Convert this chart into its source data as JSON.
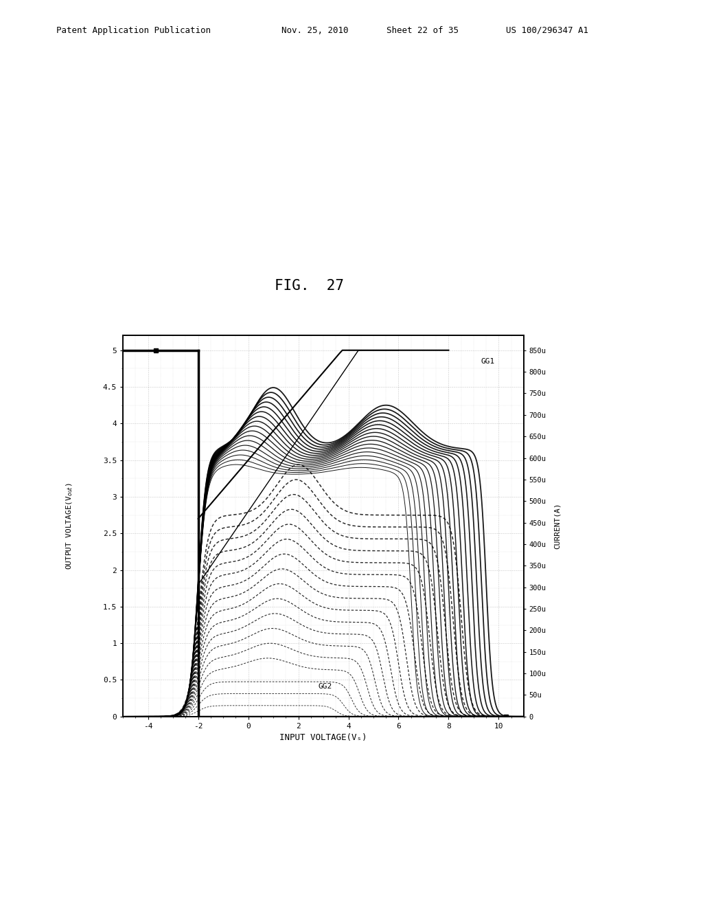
{
  "title": "FIG.  27",
  "xlabel": "INPUT VOLTAGE(Vₛ)",
  "ylabel": "OUTPUT VOLTAGE(V$_{out}$)",
  "ylabel2": "CURRENT(A)",
  "xlim": [
    -5,
    11
  ],
  "ylim": [
    0,
    5.2
  ],
  "xticks": [
    -4,
    -2,
    0,
    2,
    4,
    6,
    8,
    10
  ],
  "yticks_left": [
    0,
    0.5,
    1.0,
    1.5,
    2.0,
    2.5,
    3.0,
    3.5,
    4.0,
    4.5,
    5.0
  ],
  "ytick_labels_right": [
    "0",
    "50u",
    "100u",
    "150u",
    "200u",
    "250u",
    "300u",
    "350u",
    "400u",
    "450u",
    "500u",
    "550u",
    "600u",
    "650u",
    "700u",
    "750u",
    "800u",
    "850u"
  ],
  "vdd": 5.0,
  "n_solid": 17,
  "n_dashed": 17,
  "gg1_label": "GG1",
  "gg2_label": "GG2",
  "header1": "Patent Application Publication",
  "header2": "Nov. 25, 2010",
  "header3": "Sheet 22 of 35",
  "header4": "US 100/296347 A1",
  "background_color": "#ffffff"
}
